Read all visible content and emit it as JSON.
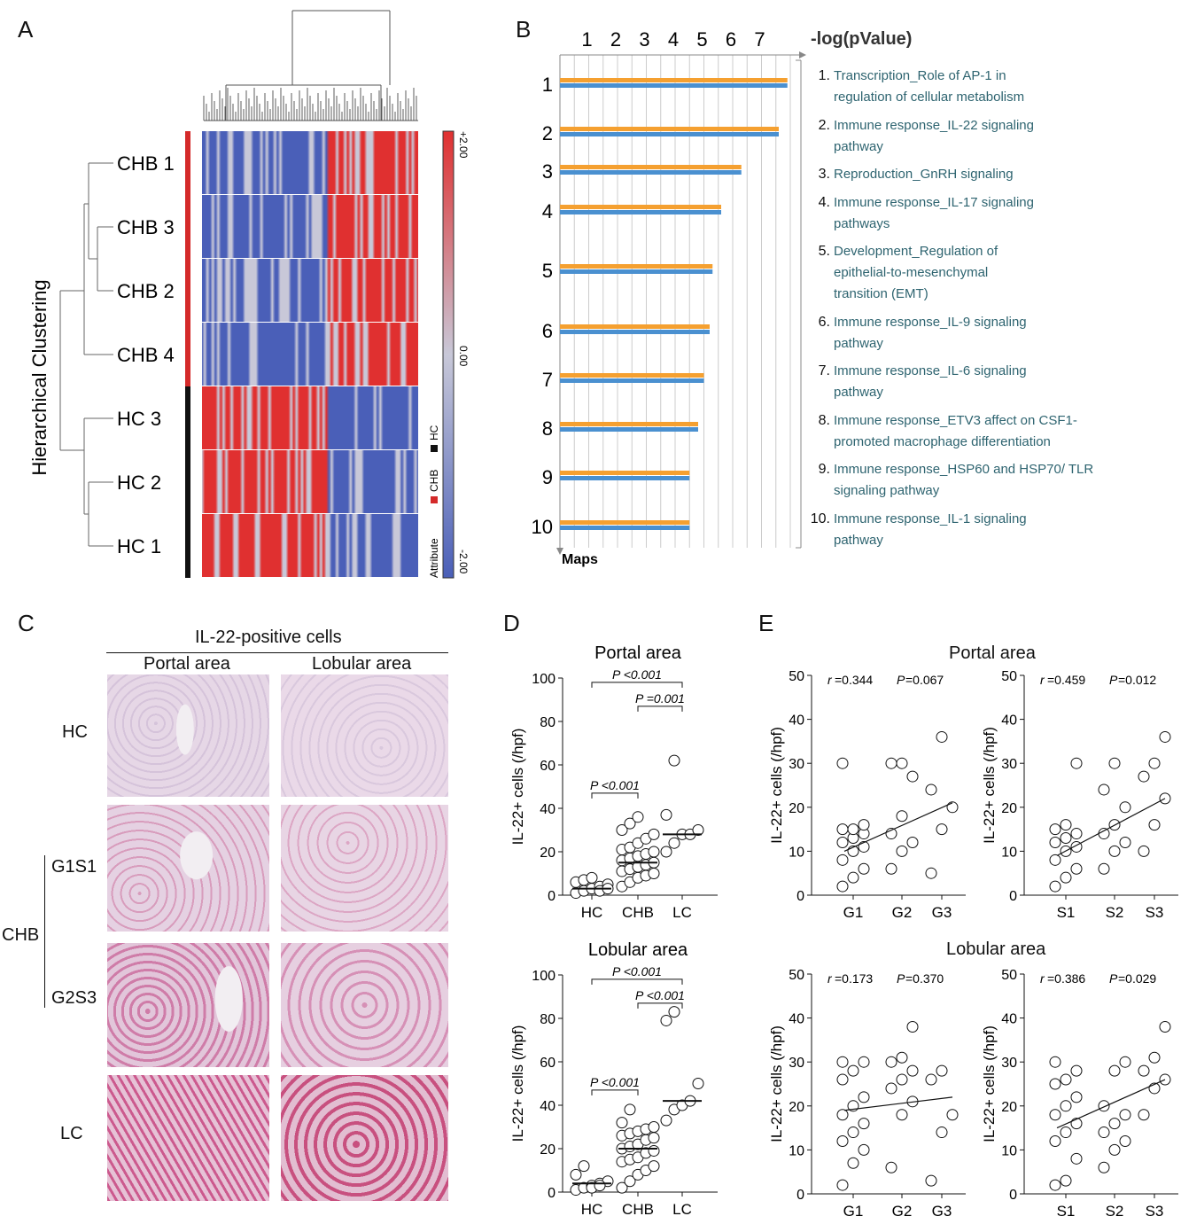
{
  "panels": {
    "A": "A",
    "B": "B",
    "C": "C",
    "D": "D",
    "E": "E"
  },
  "heatmap": {
    "ylabel": "Hierarchical Clustering",
    "rows": [
      {
        "label": "CHB 1",
        "group": "CHB"
      },
      {
        "label": "CHB 3",
        "group": "CHB"
      },
      {
        "label": "CHB 2",
        "group": "CHB"
      },
      {
        "label": "CHB 4",
        "group": "CHB"
      },
      {
        "label": "HC 3",
        "group": "HC"
      },
      {
        "label": "HC 2",
        "group": "HC"
      },
      {
        "label": "HC 1",
        "group": "HC"
      }
    ],
    "scale": {
      "max": "+2.00",
      "mid": "0.00",
      "min": "-2.00"
    },
    "legend": {
      "title": "Attribute",
      "chb": "CHB",
      "hc": "HC"
    },
    "colors": {
      "high": "#e03030",
      "low": "#4a5fb8",
      "mid": "#c8c8d8",
      "chb": "#d42a2a",
      "hc": "#111111"
    }
  },
  "chart_data": [
    {
      "type": "bar",
      "orientation": "horizontal",
      "title": "-log(pValue)",
      "xlabel": "-log(pValue)",
      "ylabel": "Maps",
      "xticks": [
        1,
        2,
        3,
        4,
        5,
        6,
        7
      ],
      "categories": [
        "1",
        "2",
        "3",
        "4",
        "5",
        "6",
        "7",
        "8",
        "9",
        "10"
      ],
      "series": [
        {
          "color": "#f5a030",
          "values": [
            7.9,
            7.6,
            6.3,
            5.6,
            5.3,
            5.2,
            5.0,
            4.8,
            4.5,
            4.5
          ]
        },
        {
          "color": "#4a90d0",
          "values": [
            7.9,
            7.6,
            6.3,
            5.6,
            5.3,
            5.2,
            5.0,
            4.8,
            4.5,
            4.5
          ]
        }
      ],
      "map_names": [
        {
          "num": "1.",
          "lines": [
            "Transcription_Role of AP-1 in",
            "regulation of cellular metabolism"
          ]
        },
        {
          "num": "2.",
          "lines": [
            "Immune response_IL-22 signaling",
            "pathway"
          ]
        },
        {
          "num": "3.",
          "lines": [
            "Reproduction_GnRH signaling"
          ]
        },
        {
          "num": "4.",
          "lines": [
            "Immune response_IL-17 signaling",
            "pathways"
          ]
        },
        {
          "num": "5.",
          "lines": [
            "Development_Regulation of",
            "epithelial-to-mesenchymal",
            "transition (EMT)"
          ]
        },
        {
          "num": "6.",
          "lines": [
            "Immune response_IL-9 signaling",
            "pathway"
          ]
        },
        {
          "num": "7.",
          "lines": [
            "Immune response_IL-6 signaling",
            "pathway"
          ]
        },
        {
          "num": "8.",
          "lines": [
            "Immune response_ETV3 affect on CSF1-",
            "promoted macrophage differentiation"
          ]
        },
        {
          "num": "9.",
          "lines": [
            "Immune response_HSP60 and HSP70/ TLR",
            "signaling pathway"
          ]
        },
        {
          "num": "10.",
          "lines": [
            "Immune response_IL-1 signaling",
            "pathway"
          ]
        }
      ]
    },
    {
      "type": "scatter",
      "title": "Portal area",
      "ylabel": "IL-22+ cells (/hpf)",
      "categories": [
        "HC",
        "CHB",
        "LC"
      ],
      "ylim": [
        0,
        100
      ],
      "yticks": [
        0,
        20,
        40,
        60,
        80,
        100
      ],
      "medians": [
        3,
        15,
        28
      ],
      "points": [
        [
          1,
          2,
          3,
          4,
          5,
          6,
          7,
          8,
          2,
          3
        ],
        [
          4,
          6,
          8,
          9,
          10,
          11,
          12,
          13,
          14,
          15,
          16,
          17,
          18,
          19,
          20,
          21,
          22,
          24,
          26,
          28,
          30,
          33,
          36
        ],
        [
          20,
          24,
          28,
          28,
          30,
          37,
          62
        ]
      ],
      "comparisons": [
        {
          "label": "P <0.001",
          "from": 0,
          "to": 2
        },
        {
          "label": "P =0.001",
          "from": 1,
          "to": 2
        },
        {
          "label": "P <0.001",
          "from": 0,
          "to": 1
        }
      ]
    },
    {
      "type": "scatter",
      "title": "Lobular area",
      "ylabel": "IL-22+ cells (/hpf)",
      "categories": [
        "HC",
        "CHB",
        "LC"
      ],
      "ylim": [
        0,
        100
      ],
      "yticks": [
        0,
        20,
        40,
        60,
        80,
        100
      ],
      "medians": [
        4,
        20,
        42
      ],
      "points": [
        [
          1,
          2,
          3,
          4,
          5,
          8,
          12,
          2,
          3
        ],
        [
          2,
          5,
          8,
          10,
          12,
          14,
          15,
          16,
          18,
          19,
          20,
          21,
          22,
          24,
          25,
          26,
          27,
          28,
          29,
          30,
          32,
          38
        ],
        [
          33,
          38,
          40,
          42,
          50,
          79,
          83
        ]
      ],
      "comparisons": [
        {
          "label": "P <0.001",
          "from": 0,
          "to": 2
        },
        {
          "label": "P <0.001",
          "from": 1,
          "to": 2
        },
        {
          "label": "P <0.001",
          "from": 0,
          "to": 1
        }
      ]
    },
    {
      "type": "scatter",
      "section": "Portal area",
      "ylabel": "IL-22+ cells (/hpf)",
      "categories": [
        "G1",
        "G2",
        "G3"
      ],
      "ylim": [
        0,
        50
      ],
      "yticks": [
        0,
        10,
        20,
        30,
        40,
        50
      ],
      "stat": {
        "r": "=0.344",
        "p": "=0.067"
      },
      "points": [
        [
          2,
          4,
          6,
          8,
          10,
          11,
          12,
          13,
          14,
          15,
          15,
          16,
          30
        ],
        [
          6,
          10,
          12,
          14,
          18,
          27,
          30,
          30
        ],
        [
          5,
          15,
          20,
          24,
          36
        ]
      ],
      "trend": [
        10,
        21
      ]
    },
    {
      "type": "scatter",
      "section": "Portal area",
      "ylabel": "IL-22+ cells (/hpf)",
      "categories": [
        "S1",
        "S2",
        "S3"
      ],
      "ylim": [
        0,
        50
      ],
      "yticks": [
        0,
        10,
        20,
        30,
        40,
        50
      ],
      "stat": {
        "r": "=0.459",
        "p": "=0.012"
      },
      "points": [
        [
          2,
          4,
          6,
          8,
          10,
          11,
          12,
          13,
          14,
          15,
          16,
          30
        ],
        [
          6,
          10,
          12,
          14,
          16,
          20,
          24,
          30
        ],
        [
          10,
          16,
          22,
          27,
          30,
          36
        ]
      ],
      "trend": [
        9,
        22
      ]
    },
    {
      "type": "scatter",
      "section": "Lobular area",
      "ylabel": "IL-22+ cells (/hpf)",
      "categories": [
        "G1",
        "G2",
        "G3"
      ],
      "ylim": [
        0,
        50
      ],
      "yticks": [
        0,
        10,
        20,
        30,
        40,
        50
      ],
      "stat": {
        "r": "=0.173",
        "p": "=0.370"
      },
      "points": [
        [
          2,
          7,
          10,
          12,
          14,
          16,
          18,
          20,
          22,
          26,
          28,
          30,
          30
        ],
        [
          6,
          18,
          21,
          24,
          26,
          28,
          30,
          31,
          38
        ],
        [
          3,
          14,
          18,
          26,
          28
        ]
      ],
      "trend": [
        19,
        22
      ]
    },
    {
      "type": "scatter",
      "section": "Lobular area",
      "ylabel": "IL-22+ cells (/hpf)",
      "categories": [
        "S1",
        "S2",
        "S3"
      ],
      "ylim": [
        0,
        50
      ],
      "yticks": [
        0,
        10,
        20,
        30,
        40,
        50
      ],
      "stat": {
        "r": "=0.386",
        "p": "=0.029"
      },
      "points": [
        [
          2,
          3,
          8,
          12,
          14,
          16,
          18,
          20,
          22,
          25,
          26,
          28,
          30
        ],
        [
          6,
          10,
          12,
          14,
          16,
          18,
          20,
          28,
          30
        ],
        [
          18,
          24,
          26,
          28,
          31,
          38
        ]
      ],
      "trend": [
        15,
        26
      ]
    }
  ],
  "histology": {
    "title": "IL-22-positive cells",
    "columns": [
      "Portal area",
      "Lobular area"
    ],
    "rows": [
      "HC",
      "G1S1",
      "G2S3",
      "LC"
    ],
    "group": "CHB"
  },
  "section_titles": {
    "portal": "Portal area",
    "lobular": "Lobular area"
  }
}
